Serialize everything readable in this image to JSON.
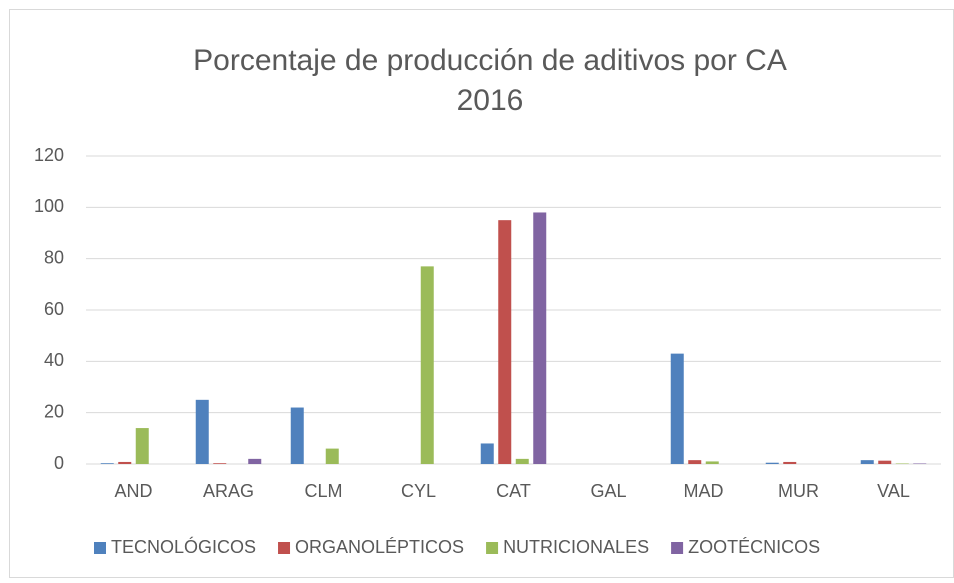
{
  "chart_data": {
    "type": "bar",
    "title": "Porcentaje de producción de aditivos por CA",
    "subtitle": "2016",
    "categories": [
      "AND",
      "ARAG",
      "CLM",
      "CYL",
      "CAT",
      "GAL",
      "MAD",
      "MUR",
      "VAL"
    ],
    "series": [
      {
        "name": "TECNOLÓGICOS",
        "color": "#4f81bd",
        "values": [
          0.3,
          25,
          22,
          0,
          8,
          0,
          43,
          0.5,
          1.5
        ]
      },
      {
        "name": "ORGANOLÉPTICOS",
        "color": "#c0504d",
        "values": [
          0.8,
          0.3,
          0,
          0,
          95,
          0,
          1.5,
          0.8,
          1.3
        ]
      },
      {
        "name": "NUTRICIONALES",
        "color": "#9bbb59",
        "values": [
          14,
          0,
          6,
          77,
          2,
          0,
          1,
          0,
          0.2
        ]
      },
      {
        "name": "ZOOTÉCNICOS",
        "color": "#8064a2",
        "values": [
          0,
          2,
          0,
          0,
          98,
          0,
          0,
          0,
          0.2
        ]
      }
    ],
    "ylim": [
      0,
      120
    ],
    "yticks": [
      0,
      20,
      40,
      60,
      80,
      100,
      120
    ],
    "grid": true,
    "legend": "bottom"
  }
}
